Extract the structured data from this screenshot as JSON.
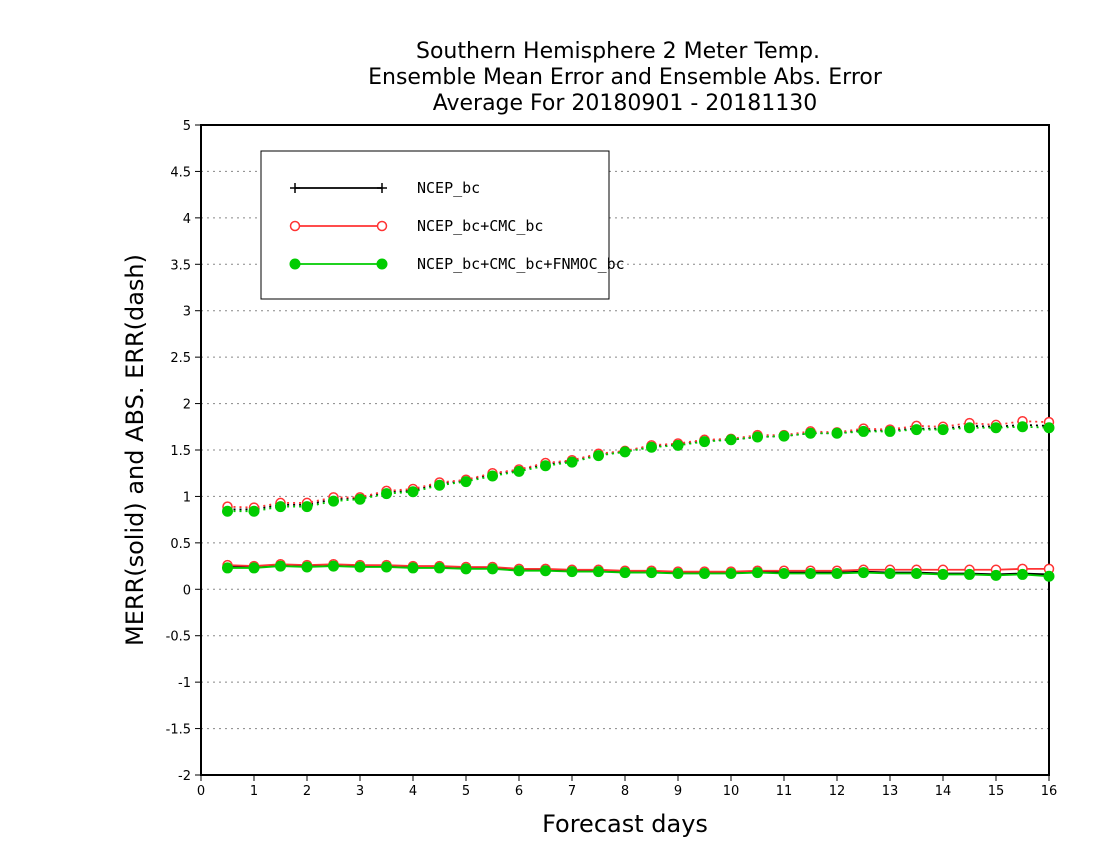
{
  "chart_data": {
    "type": "line",
    "title": [
      "Southern Hemisphere 2 Meter Temp.",
      "Ensemble Mean Error and Ensemble Abs. Error",
      "Average For 20180901 - 20181130"
    ],
    "xlabel": "Forecast days",
    "ylabel": "MERR(solid) and ABS. ERR(dash)",
    "xlim": [
      0,
      16
    ],
    "ylim": [
      -2,
      5
    ],
    "xticks": [
      "0",
      "1",
      "2",
      "3",
      "4",
      "5",
      "6",
      "7",
      "8",
      "9",
      "10",
      "11",
      "12",
      "13",
      "14",
      "15",
      "16"
    ],
    "yticks": [
      "-2",
      "-1.5",
      "-1",
      "-0.5",
      "0",
      "0.5",
      "1",
      "1.5",
      "2",
      "2.5",
      "3",
      "3.5",
      "4",
      "4.5",
      "5"
    ],
    "grid": "horizontal dotted",
    "legend_position": "top-left",
    "x": [
      0.5,
      1,
      1.5,
      2,
      2.5,
      3,
      3.5,
      4,
      4.5,
      5,
      5.5,
      6,
      6.5,
      7,
      7.5,
      8,
      8.5,
      9,
      9.5,
      10,
      10.5,
      11,
      11.5,
      12,
      12.5,
      13,
      13.5,
      14,
      14.5,
      15,
      15.5,
      16
    ],
    "series": [
      {
        "name": "NCEP_bc",
        "color": "#000000",
        "marker": "plus",
        "merr": [
          0.24,
          0.24,
          0.26,
          0.25,
          0.26,
          0.25,
          0.25,
          0.24,
          0.24,
          0.23,
          0.23,
          0.21,
          0.21,
          0.2,
          0.2,
          0.19,
          0.19,
          0.18,
          0.18,
          0.18,
          0.19,
          0.18,
          0.18,
          0.18,
          0.19,
          0.18,
          0.18,
          0.17,
          0.17,
          0.16,
          0.17,
          0.16
        ],
        "abs_err": [
          0.86,
          0.86,
          0.91,
          0.91,
          0.97,
          0.98,
          1.05,
          1.06,
          1.14,
          1.17,
          1.24,
          1.28,
          1.35,
          1.38,
          1.45,
          1.48,
          1.54,
          1.56,
          1.6,
          1.61,
          1.64,
          1.65,
          1.68,
          1.68,
          1.71,
          1.71,
          1.73,
          1.73,
          1.76,
          1.75,
          1.77,
          1.76
        ]
      },
      {
        "name": "NCEP_bc+CMC_bc",
        "color": "#ff3333",
        "marker": "open-circle",
        "merr": [
          0.26,
          0.25,
          0.27,
          0.26,
          0.27,
          0.26,
          0.26,
          0.25,
          0.25,
          0.24,
          0.24,
          0.22,
          0.22,
          0.21,
          0.21,
          0.2,
          0.2,
          0.19,
          0.19,
          0.19,
          0.2,
          0.2,
          0.2,
          0.2,
          0.21,
          0.21,
          0.21,
          0.21,
          0.21,
          0.21,
          0.22,
          0.22
        ],
        "abs_err": [
          0.89,
          0.88,
          0.93,
          0.93,
          0.99,
          0.99,
          1.06,
          1.08,
          1.15,
          1.18,
          1.25,
          1.29,
          1.36,
          1.39,
          1.46,
          1.49,
          1.55,
          1.57,
          1.61,
          1.62,
          1.66,
          1.66,
          1.7,
          1.69,
          1.73,
          1.72,
          1.76,
          1.75,
          1.79,
          1.77,
          1.81,
          1.8
        ]
      },
      {
        "name": "NCEP_bc+CMC_bc+FNMOC_bc",
        "color": "#00cc00",
        "marker": "filled-circle",
        "merr": [
          0.23,
          0.23,
          0.25,
          0.24,
          0.25,
          0.24,
          0.24,
          0.23,
          0.23,
          0.22,
          0.22,
          0.2,
          0.2,
          0.19,
          0.19,
          0.18,
          0.18,
          0.17,
          0.17,
          0.17,
          0.18,
          0.17,
          0.17,
          0.17,
          0.18,
          0.17,
          0.17,
          0.16,
          0.16,
          0.15,
          0.16,
          0.14
        ],
        "abs_err": [
          0.84,
          0.84,
          0.89,
          0.89,
          0.95,
          0.97,
          1.03,
          1.05,
          1.12,
          1.16,
          1.22,
          1.27,
          1.33,
          1.37,
          1.44,
          1.48,
          1.53,
          1.55,
          1.59,
          1.61,
          1.64,
          1.65,
          1.68,
          1.68,
          1.7,
          1.7,
          1.72,
          1.72,
          1.74,
          1.74,
          1.75,
          1.74
        ]
      }
    ]
  }
}
